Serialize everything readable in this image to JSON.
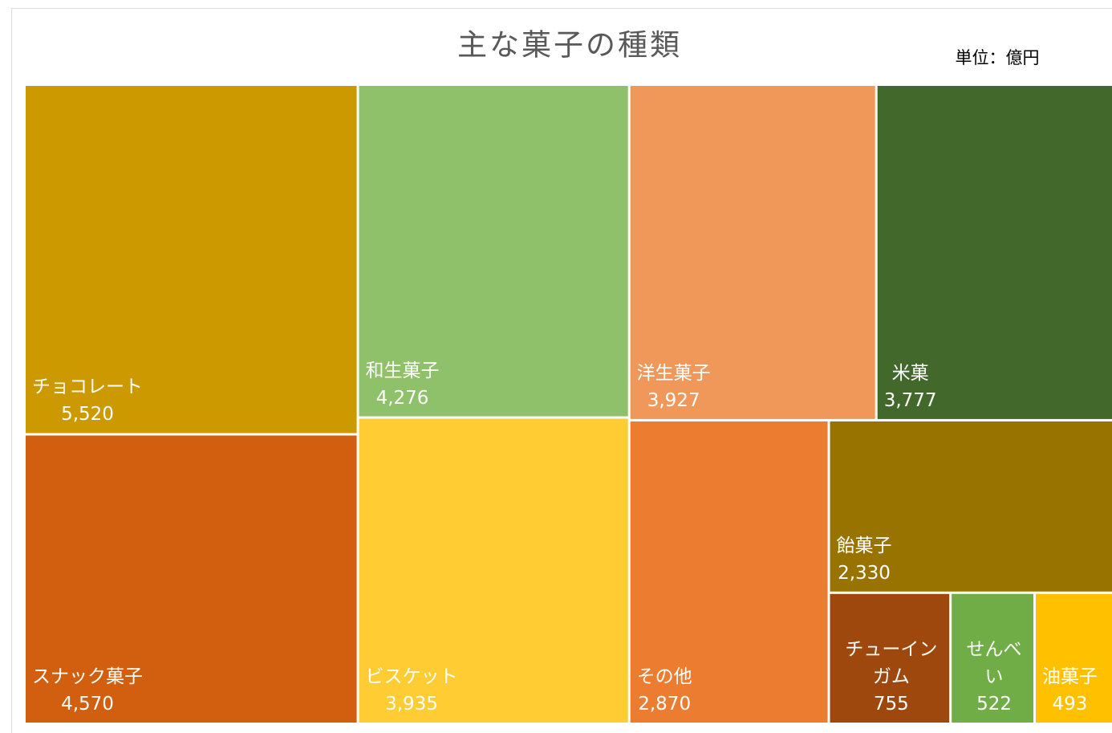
{
  "chart_data": {
    "type": "treemap",
    "title": "主な菓子の種類",
    "note": "単位：億円",
    "categories": [
      "チョコレート",
      "スナック菓子",
      "和生菓子",
      "ビスケット",
      "洋生菓子",
      "米菓",
      "その他",
      "飴菓子",
      "チューインガム",
      "せんべい",
      "油菓子"
    ],
    "values": [
      5520,
      4570,
      4276,
      3935,
      3927,
      3777,
      2870,
      2330,
      755,
      522,
      493
    ],
    "value_labels": [
      "5,520",
      "4,570",
      "4,276",
      "3,935",
      "3,927",
      "3,777",
      "2,870",
      "2,330",
      "755",
      "522",
      "493"
    ],
    "colors": [
      "#CC9900",
      "#D25F10",
      "#8FC16A",
      "#FFCC33",
      "#F0975A",
      "#43682B",
      "#EC7C30",
      "#997300",
      "#9E480E",
      "#70AD47",
      "#FFC000"
    ]
  }
}
